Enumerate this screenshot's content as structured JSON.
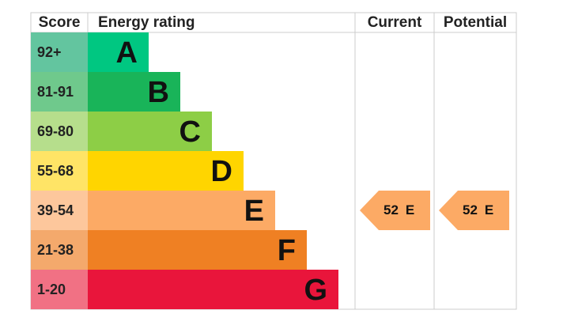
{
  "header": {
    "score": "Score",
    "rating": "Energy rating",
    "current": "Current",
    "potential": "Potential"
  },
  "rows": [
    {
      "score": "92+",
      "band": "A",
      "color": "#00c781",
      "score_color": "#63c59f"
    },
    {
      "score": "81-91",
      "band": "B",
      "color": "#19b459",
      "score_color": "#6fc98c"
    },
    {
      "score": "69-80",
      "band": "C",
      "color": "#8dce46",
      "score_color": "#b6de8c"
    },
    {
      "score": "55-68",
      "band": "D",
      "color": "#ffd500",
      "score_color": "#ffe466"
    },
    {
      "score": "39-54",
      "band": "E",
      "color": "#fcaa65",
      "score_color": "#fdc79c"
    },
    {
      "score": "21-38",
      "band": "F",
      "color": "#ef8023",
      "score_color": "#f4a96c"
    },
    {
      "score": "1-20",
      "band": "G",
      "color": "#e9153b",
      "score_color": "#f17184"
    }
  ],
  "current": {
    "score": "52",
    "band": "E"
  },
  "potential": {
    "score": "52",
    "band": "E"
  }
}
